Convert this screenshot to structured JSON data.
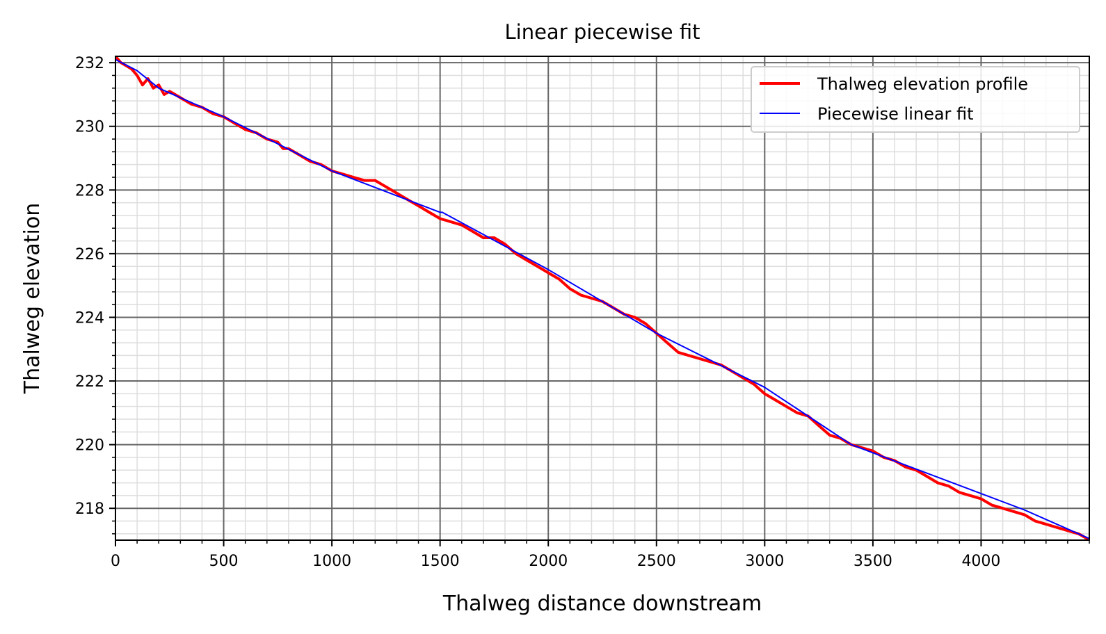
{
  "chart_data": {
    "type": "line",
    "title": "Linear piecewise fit",
    "xlabel": "Thalweg distance downstream",
    "ylabel": "Thalweg elevation",
    "xlim": [
      0,
      4500
    ],
    "ylim": [
      217,
      232.2
    ],
    "xticks": [
      0,
      500,
      1000,
      1500,
      2000,
      2500,
      3000,
      3500,
      4000
    ],
    "xtick_labels": [
      "0",
      "500",
      "1000",
      "1500",
      "2000",
      "2500",
      "3000",
      "3500",
      "4000"
    ],
    "yticks": [
      218,
      220,
      222,
      224,
      226,
      228,
      230,
      232
    ],
    "ytick_labels": [
      "218",
      "220",
      "222",
      "224",
      "226",
      "228",
      "230",
      "232"
    ],
    "x_minor_step": 100,
    "y_minor_step": 0.4,
    "grid": true,
    "legend_position": "top-right",
    "series": [
      {
        "name": "Thalweg elevation profile",
        "color": "#ff0000",
        "x": [
          0,
          25,
          50,
          75,
          100,
          125,
          150,
          175,
          200,
          225,
          250,
          275,
          300,
          350,
          400,
          450,
          500,
          550,
          600,
          650,
          700,
          750,
          775,
          800,
          850,
          900,
          950,
          1000,
          1050,
          1100,
          1150,
          1200,
          1250,
          1300,
          1350,
          1400,
          1450,
          1500,
          1550,
          1600,
          1650,
          1700,
          1750,
          1800,
          1850,
          1900,
          1950,
          2000,
          2050,
          2100,
          2150,
          2200,
          2250,
          2300,
          2350,
          2400,
          2450,
          2500,
          2550,
          2600,
          2650,
          2700,
          2750,
          2800,
          2850,
          2900,
          2950,
          3000,
          3050,
          3100,
          3150,
          3200,
          3250,
          3300,
          3350,
          3400,
          3450,
          3500,
          3550,
          3600,
          3650,
          3700,
          3750,
          3800,
          3850,
          3900,
          3950,
          4000,
          4050,
          4100,
          4150,
          4200,
          4250,
          4300,
          4350,
          4400,
          4450,
          4490
        ],
        "y": [
          232.2,
          232.0,
          231.9,
          231.8,
          231.6,
          231.3,
          231.5,
          231.2,
          231.3,
          231.0,
          231.1,
          231.0,
          230.9,
          230.7,
          230.6,
          230.4,
          230.3,
          230.1,
          229.9,
          229.8,
          229.6,
          229.5,
          229.3,
          229.3,
          229.1,
          228.9,
          228.8,
          228.6,
          228.5,
          228.4,
          228.3,
          228.3,
          228.1,
          227.9,
          227.7,
          227.5,
          227.3,
          227.1,
          227.0,
          226.9,
          226.7,
          226.5,
          226.5,
          226.3,
          226.0,
          225.8,
          225.6,
          225.4,
          225.2,
          224.9,
          224.7,
          224.6,
          224.5,
          224.3,
          224.1,
          224.0,
          223.8,
          223.5,
          223.2,
          222.9,
          222.8,
          222.7,
          222.6,
          222.5,
          222.3,
          222.1,
          221.9,
          221.6,
          221.4,
          221.2,
          221.0,
          220.9,
          220.6,
          220.3,
          220.2,
          220.0,
          219.9,
          219.8,
          219.6,
          219.5,
          219.3,
          219.2,
          219.0,
          218.8,
          218.7,
          218.5,
          218.4,
          218.3,
          218.1,
          218.0,
          217.9,
          217.8,
          217.6,
          217.5,
          217.4,
          217.3,
          217.2,
          217.05
        ]
      },
      {
        "name": "Piecewise linear fit",
        "color": "#0000ff",
        "x": [
          0,
          100,
          200,
          500,
          1000,
          1500,
          1510,
          2000,
          2500,
          3000,
          3400,
          4200,
          4500
        ],
        "y": [
          232.1,
          231.75,
          231.2,
          230.3,
          228.6,
          227.3,
          227.3,
          225.5,
          223.5,
          221.8,
          220.0,
          217.95,
          217.05
        ]
      }
    ]
  }
}
